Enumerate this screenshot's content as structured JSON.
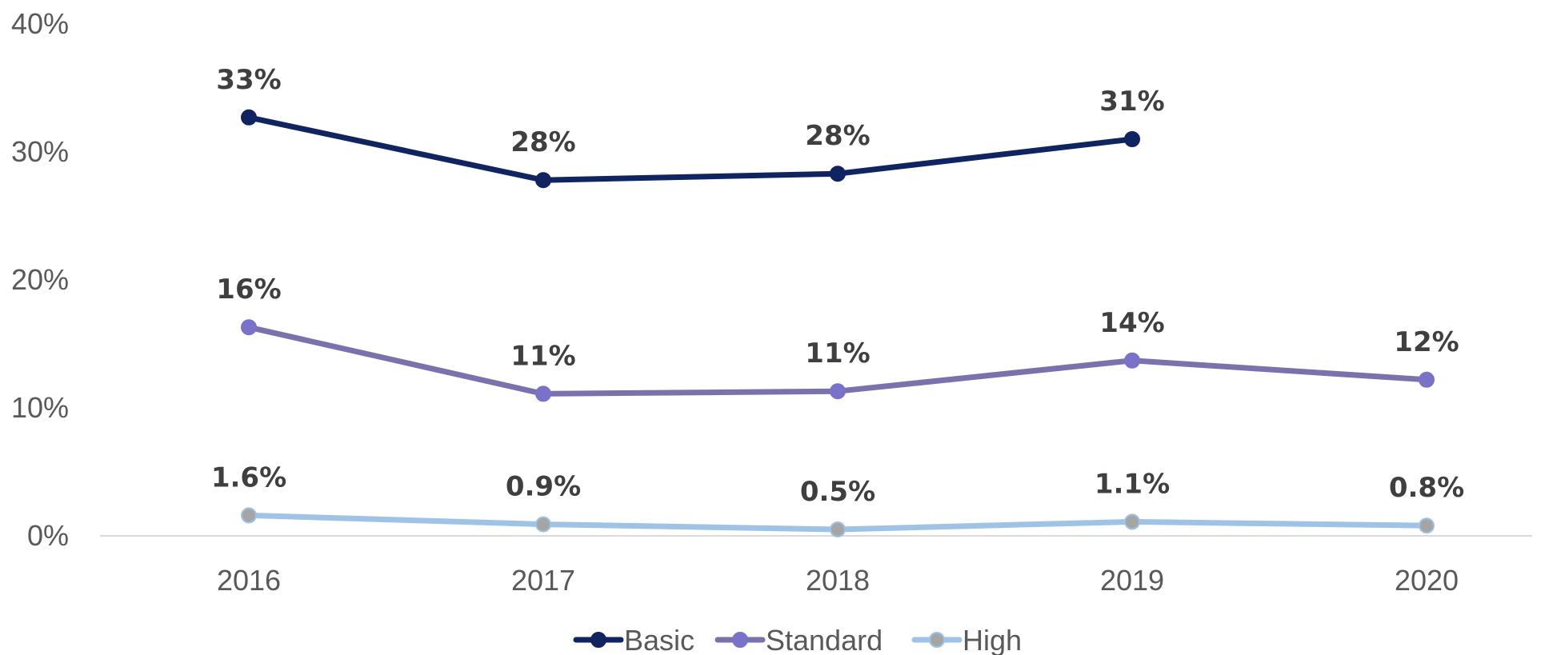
{
  "chart_data": {
    "type": "line",
    "categories": [
      "2016",
      "2017",
      "2018",
      "2019",
      "2020"
    ],
    "y_ticks": [
      0,
      10,
      20,
      30,
      40
    ],
    "y_tick_labels": [
      "0%",
      "10%",
      "20%",
      "30%",
      "40%"
    ],
    "ylim": [
      0,
      40
    ],
    "grid": false,
    "legend_position": "bottom",
    "title": "",
    "xlabel": "",
    "ylabel": "",
    "series": [
      {
        "name": "Basic",
        "values": [
          32.7,
          27.8,
          28.3,
          31.0,
          null
        ],
        "labels": [
          "33%",
          "28%",
          "28%",
          "31%",
          null
        ],
        "line_color": "#0f2461",
        "marker_color": "#0f2461",
        "marker_stroke": "#0f2461"
      },
      {
        "name": "Standard",
        "values": [
          16.3,
          11.1,
          11.3,
          13.7,
          12.2
        ],
        "labels": [
          "16%",
          "11%",
          "11%",
          "14%",
          "12%"
        ],
        "line_color": "#7a72ad",
        "marker_color": "#7a72c8",
        "marker_stroke": "#7a72c8"
      },
      {
        "name": "High",
        "values": [
          1.6,
          0.9,
          0.5,
          1.1,
          0.8
        ],
        "labels": [
          "1.6%",
          "0.9%",
          "0.5%",
          "1.1%",
          "0.8%"
        ],
        "line_color": "#9ec3e6",
        "marker_color": "#a5a5a5",
        "marker_stroke": "#9ec3e6"
      }
    ]
  }
}
